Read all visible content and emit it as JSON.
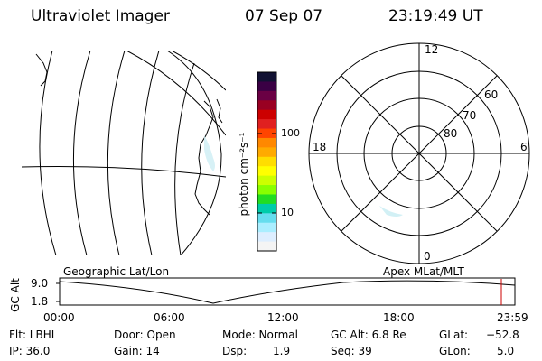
{
  "header": {
    "title": "Ultraviolet Imager",
    "date": "07 Sep 07",
    "time": "23:19:49 UT"
  },
  "colorbar": {
    "label": "photon cm⁻²s⁻¹",
    "ticks": [
      "100",
      "10"
    ],
    "colors": [
      "#111133",
      "#3a0044",
      "#6a0044",
      "#990022",
      "#cc0000",
      "#e02020",
      "#ff4400",
      "#ff8800",
      "#ffaa00",
      "#ffdd00",
      "#ffff00",
      "#ccff00",
      "#88ff00",
      "#22dd22",
      "#00ccaa",
      "#66ddee",
      "#aaeeff",
      "#ddeeff",
      "#f4f4f4"
    ]
  },
  "polar_plot": {
    "mlt_labels": [
      "12",
      "18",
      "6",
      "0"
    ],
    "lat_labels": [
      "60",
      "70",
      "80"
    ]
  },
  "map_labels": {
    "left": "Geographic Lat/Lon",
    "right": "Apex MLat/MLT"
  },
  "altitude_plot": {
    "ylabel": "GC Alt",
    "yticks": [
      "9.0",
      "1.8"
    ],
    "xticks": [
      "00:00",
      "06:00",
      "12:00",
      "18:00",
      "23:59"
    ]
  },
  "info": {
    "flt": "Flt: LBHL",
    "ip": "IP: 36.0",
    "door": "Door: Open",
    "gain": "Gain: 14",
    "mode": "Mode: Normal",
    "dsp_label": "Dsp:",
    "dsp_value": "1.9",
    "gcalt": "GC Alt: 6.8 Re",
    "seq": "Seq: 39",
    "glat_label": "GLat:",
    "glat_value": "−52.8",
    "glon_label": "GLon:",
    "glon_value": "5.0"
  }
}
